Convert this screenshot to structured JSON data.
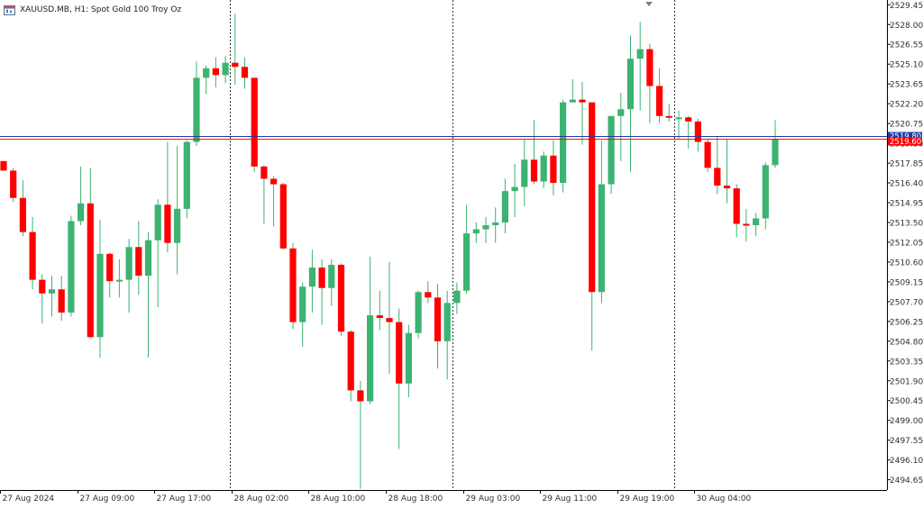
{
  "chart_header": {
    "symbol_text": "XAUUSD.MB, H1:  Spot Gold 100 Troy Oz",
    "icon": "chart-window-icon"
  },
  "colors": {
    "background": "#ffffff",
    "bull": "#3cb371",
    "bear": "#ff0000",
    "wick": "#3cb371",
    "axis_text": "#303030",
    "separator": "#000000",
    "bid_line": "#1e3ca0",
    "ask_line": "#ff0000"
  },
  "price_tags": {
    "bid": "2519.80",
    "ask": "2519.60"
  },
  "chart_data": {
    "type": "candlestick",
    "symbol": "XAUUSD.MB",
    "timeframe": "H1",
    "ylim": [
      2493.9,
      2529.8
    ],
    "y_ticks": [
      "2529.45",
      "2528.00",
      "2526.55",
      "2525.10",
      "2523.65",
      "2522.20",
      "2520.75",
      "2519.30",
      "2517.85",
      "2516.40",
      "2514.95",
      "2513.50",
      "2512.05",
      "2510.60",
      "2509.15",
      "2507.70",
      "2506.25",
      "2504.80",
      "2503.35",
      "2501.90",
      "2500.45",
      "2499.00",
      "2497.55",
      "2496.10",
      "2494.65"
    ],
    "x_labels": [
      "27 Aug 2024",
      "27 Aug 09:00",
      "27 Aug 17:00",
      "28 Aug 02:00",
      "28 Aug 10:00",
      "28 Aug 18:00",
      "29 Aug 03:00",
      "29 Aug 11:00",
      "29 Aug 19:00",
      "30 Aug 04:00"
    ],
    "x_label_bars": [
      0,
      8,
      16,
      24,
      32,
      40,
      48,
      56,
      64,
      72
    ],
    "day_separator_bars": [
      23,
      46,
      69
    ],
    "bid": 2519.8,
    "ask": 2519.6,
    "candles": [
      {
        "o": 2518.0,
        "h": 2518.0,
        "l": 2517.3,
        "c": 2517.3
      },
      {
        "o": 2517.3,
        "h": 2517.5,
        "l": 2515.0,
        "c": 2515.3
      },
      {
        "o": 2515.3,
        "h": 2516.6,
        "l": 2512.5,
        "c": 2512.8
      },
      {
        "o": 2512.8,
        "h": 2513.9,
        "l": 2508.6,
        "c": 2509.3
      },
      {
        "o": 2509.3,
        "h": 2509.7,
        "l": 2506.1,
        "c": 2508.3
      },
      {
        "o": 2508.3,
        "h": 2509.6,
        "l": 2506.6,
        "c": 2508.6
      },
      {
        "o": 2508.6,
        "h": 2509.6,
        "l": 2506.3,
        "c": 2506.9
      },
      {
        "o": 2506.9,
        "h": 2514.0,
        "l": 2506.6,
        "c": 2513.6
      },
      {
        "o": 2513.6,
        "h": 2517.6,
        "l": 2513.3,
        "c": 2514.9
      },
      {
        "o": 2514.9,
        "h": 2517.5,
        "l": 2505.0,
        "c": 2505.1
      },
      {
        "o": 2505.1,
        "h": 2513.7,
        "l": 2503.6,
        "c": 2511.2
      },
      {
        "o": 2511.2,
        "h": 2511.3,
        "l": 2508.0,
        "c": 2509.2
      },
      {
        "o": 2509.2,
        "h": 2510.8,
        "l": 2508.0,
        "c": 2509.3
      },
      {
        "o": 2509.3,
        "h": 2512.3,
        "l": 2506.9,
        "c": 2511.7
      },
      {
        "o": 2511.7,
        "h": 2513.6,
        "l": 2508.2,
        "c": 2509.6
      },
      {
        "o": 2509.6,
        "h": 2512.8,
        "l": 2503.6,
        "c": 2512.2
      },
      {
        "o": 2512.2,
        "h": 2515.2,
        "l": 2507.3,
        "c": 2514.8
      },
      {
        "o": 2514.8,
        "h": 2519.4,
        "l": 2511.3,
        "c": 2512.0
      },
      {
        "o": 2512.0,
        "h": 2519.1,
        "l": 2509.7,
        "c": 2514.5
      },
      {
        "o": 2514.5,
        "h": 2519.5,
        "l": 2513.8,
        "c": 2519.4
      },
      {
        "o": 2519.4,
        "h": 2525.3,
        "l": 2519.1,
        "c": 2524.1
      },
      {
        "o": 2524.1,
        "h": 2525.0,
        "l": 2522.9,
        "c": 2524.8
      },
      {
        "o": 2524.8,
        "h": 2525.6,
        "l": 2523.4,
        "c": 2524.3
      },
      {
        "o": 2524.3,
        "h": 2525.7,
        "l": 2523.7,
        "c": 2525.2
      },
      {
        "o": 2525.2,
        "h": 2528.8,
        "l": 2523.6,
        "c": 2524.9
      },
      {
        "o": 2524.9,
        "h": 2525.6,
        "l": 2523.3,
        "c": 2524.1
      },
      {
        "o": 2524.1,
        "h": 2524.1,
        "l": 2517.2,
        "c": 2517.6
      },
      {
        "o": 2517.6,
        "h": 2517.7,
        "l": 2513.4,
        "c": 2516.7
      },
      {
        "o": 2516.7,
        "h": 2516.9,
        "l": 2513.2,
        "c": 2516.3
      },
      {
        "o": 2516.3,
        "h": 2516.4,
        "l": 2511.5,
        "c": 2511.6
      },
      {
        "o": 2511.6,
        "h": 2512.0,
        "l": 2505.7,
        "c": 2506.2
      },
      {
        "o": 2506.2,
        "h": 2509.1,
        "l": 2504.4,
        "c": 2508.8
      },
      {
        "o": 2508.8,
        "h": 2511.5,
        "l": 2506.9,
        "c": 2510.2
      },
      {
        "o": 2510.2,
        "h": 2510.8,
        "l": 2506.0,
        "c": 2508.7
      },
      {
        "o": 2508.7,
        "h": 2510.8,
        "l": 2507.4,
        "c": 2510.4
      },
      {
        "o": 2510.4,
        "h": 2510.5,
        "l": 2505.2,
        "c": 2505.5
      },
      {
        "o": 2505.5,
        "h": 2505.6,
        "l": 2500.4,
        "c": 2501.2
      },
      {
        "o": 2501.2,
        "h": 2501.9,
        "l": 2494.0,
        "c": 2500.4
      },
      {
        "o": 2500.4,
        "h": 2511.0,
        "l": 2500.2,
        "c": 2506.7
      },
      {
        "o": 2506.7,
        "h": 2508.5,
        "l": 2505.6,
        "c": 2506.5
      },
      {
        "o": 2506.5,
        "h": 2510.6,
        "l": 2502.4,
        "c": 2506.2
      },
      {
        "o": 2506.2,
        "h": 2507.2,
        "l": 2496.9,
        "c": 2501.7
      },
      {
        "o": 2501.7,
        "h": 2506.0,
        "l": 2500.7,
        "c": 2505.4
      },
      {
        "o": 2505.4,
        "h": 2508.5,
        "l": 2505.0,
        "c": 2508.4
      },
      {
        "o": 2508.4,
        "h": 2509.2,
        "l": 2507.6,
        "c": 2508.0
      },
      {
        "o": 2508.0,
        "h": 2509.0,
        "l": 2502.8,
        "c": 2504.8
      },
      {
        "o": 2504.8,
        "h": 2508.5,
        "l": 2502.0,
        "c": 2507.6
      },
      {
        "o": 2507.6,
        "h": 2509.1,
        "l": 2506.8,
        "c": 2508.5
      },
      {
        "o": 2508.5,
        "h": 2514.8,
        "l": 2508.3,
        "c": 2512.7
      },
      {
        "o": 2512.7,
        "h": 2513.5,
        "l": 2512.0,
        "c": 2513.0
      },
      {
        "o": 2513.0,
        "h": 2513.9,
        "l": 2512.0,
        "c": 2513.3
      },
      {
        "o": 2513.3,
        "h": 2514.6,
        "l": 2512.0,
        "c": 2513.5
      },
      {
        "o": 2513.5,
        "h": 2516.7,
        "l": 2512.7,
        "c": 2515.8
      },
      {
        "o": 2515.8,
        "h": 2517.8,
        "l": 2513.9,
        "c": 2516.1
      },
      {
        "o": 2516.1,
        "h": 2519.6,
        "l": 2514.7,
        "c": 2518.1
      },
      {
        "o": 2518.1,
        "h": 2521.0,
        "l": 2516.3,
        "c": 2516.5
      },
      {
        "o": 2516.5,
        "h": 2518.7,
        "l": 2516.0,
        "c": 2518.4
      },
      {
        "o": 2518.4,
        "h": 2519.5,
        "l": 2515.5,
        "c": 2516.4
      },
      {
        "o": 2516.4,
        "h": 2522.5,
        "l": 2515.7,
        "c": 2522.3
      },
      {
        "o": 2522.3,
        "h": 2524.0,
        "l": 2522.3,
        "c": 2522.5
      },
      {
        "o": 2522.5,
        "h": 2523.8,
        "l": 2519.2,
        "c": 2522.3
      },
      {
        "o": 2522.3,
        "h": 2522.3,
        "l": 2504.1,
        "c": 2508.4
      },
      {
        "o": 2508.4,
        "h": 2519.5,
        "l": 2507.6,
        "c": 2516.3
      },
      {
        "o": 2516.3,
        "h": 2521.3,
        "l": 2515.6,
        "c": 2521.3
      },
      {
        "o": 2521.3,
        "h": 2523.0,
        "l": 2518.0,
        "c": 2521.8
      },
      {
        "o": 2521.8,
        "h": 2527.2,
        "l": 2517.2,
        "c": 2525.5
      },
      {
        "o": 2525.5,
        "h": 2528.2,
        "l": 2521.7,
        "c": 2526.2
      },
      {
        "o": 2526.2,
        "h": 2526.6,
        "l": 2520.8,
        "c": 2523.5
      },
      {
        "o": 2523.5,
        "h": 2524.8,
        "l": 2520.8,
        "c": 2521.3
      },
      {
        "o": 2521.3,
        "h": 2522.2,
        "l": 2520.9,
        "c": 2521.2
      },
      {
        "o": 2521.2,
        "h": 2521.7,
        "l": 2519.6,
        "c": 2521.2
      },
      {
        "o": 2521.2,
        "h": 2521.3,
        "l": 2518.9,
        "c": 2520.9
      },
      {
        "o": 2520.9,
        "h": 2521.1,
        "l": 2518.7,
        "c": 2519.4
      },
      {
        "o": 2519.4,
        "h": 2519.6,
        "l": 2517.2,
        "c": 2517.5
      },
      {
        "o": 2517.5,
        "h": 2519.8,
        "l": 2515.6,
        "c": 2516.2
      },
      {
        "o": 2516.2,
        "h": 2519.6,
        "l": 2514.9,
        "c": 2516.0
      },
      {
        "o": 2516.0,
        "h": 2516.3,
        "l": 2512.4,
        "c": 2513.4
      },
      {
        "o": 2513.4,
        "h": 2514.5,
        "l": 2512.1,
        "c": 2513.3
      },
      {
        "o": 2513.3,
        "h": 2514.2,
        "l": 2512.5,
        "c": 2513.8
      },
      {
        "o": 2513.8,
        "h": 2517.9,
        "l": 2513.0,
        "c": 2517.7
      },
      {
        "o": 2517.7,
        "h": 2521.0,
        "l": 2517.5,
        "c": 2519.6
      }
    ]
  }
}
